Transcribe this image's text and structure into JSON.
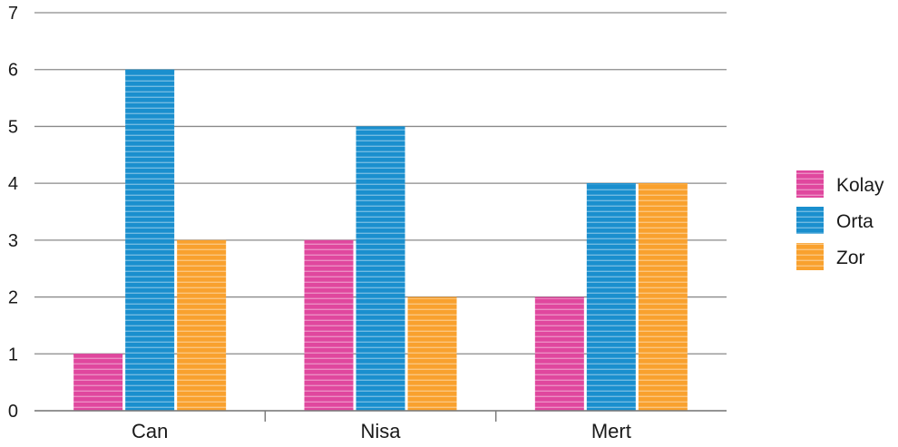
{
  "chart_data": {
    "type": "bar",
    "categories": [
      "Can",
      "Nisa",
      "Mert"
    ],
    "series": [
      {
        "name": "Kolay",
        "values": [
          1,
          3,
          2
        ],
        "color": "#e0479e"
      },
      {
        "name": "Orta",
        "values": [
          6,
          5,
          4
        ],
        "color": "#1a8fce"
      },
      {
        "name": "Zor",
        "values": [
          3,
          2,
          4
        ],
        "color": "#f9a12e"
      }
    ],
    "ylim": [
      0,
      7
    ],
    "yticks": [
      0,
      1,
      2,
      3,
      4,
      5,
      6,
      7
    ],
    "grid": true,
    "legend_position": "right",
    "bar_pattern": "horizontal-stripes"
  }
}
